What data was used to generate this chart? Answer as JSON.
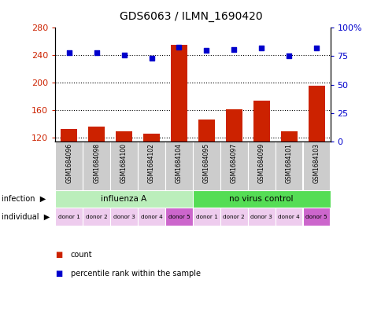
{
  "title": "GDS6063 / ILMN_1690420",
  "samples": [
    "GSM1684096",
    "GSM1684098",
    "GSM1684100",
    "GSM1684102",
    "GSM1684104",
    "GSM1684095",
    "GSM1684097",
    "GSM1684099",
    "GSM1684101",
    "GSM1684103"
  ],
  "bar_values": [
    133,
    136,
    130,
    126,
    255,
    147,
    161,
    174,
    130,
    196
  ],
  "percentile_values": [
    78,
    78,
    76,
    73,
    83,
    80,
    81,
    82,
    75,
    82
  ],
  "ylim_left": [
    115,
    280
  ],
  "ylim_right": [
    0,
    100
  ],
  "yticks_left": [
    120,
    160,
    200,
    240,
    280
  ],
  "yticks_right": [
    0,
    25,
    50,
    75,
    100
  ],
  "yticklabels_right": [
    "0",
    "25",
    "50",
    "75",
    "100%"
  ],
  "bar_color": "#CC2200",
  "dot_color": "#0000CC",
  "infection_groups": [
    {
      "label": "influenza A",
      "start": 0,
      "end": 5,
      "color": "#BBEEBB"
    },
    {
      "label": "no virus control",
      "start": 5,
      "end": 10,
      "color": "#55DD55"
    }
  ],
  "individual_labels": [
    "donor 1",
    "donor 2",
    "donor 3",
    "donor 4",
    "donor 5",
    "donor 1",
    "donor 2",
    "donor 3",
    "donor 4",
    "donor 5"
  ],
  "individual_colors": [
    "#EECCEE",
    "#EECCEE",
    "#EECCEE",
    "#EECCEE",
    "#CC66CC",
    "#EECCEE",
    "#EECCEE",
    "#EECCEE",
    "#EECCEE",
    "#CC66CC"
  ],
  "xlabel_color_left": "#CC2200",
  "xlabel_color_right": "#0000CC",
  "sample_bg_color": "#CCCCCC",
  "infection_label": "infection",
  "individual_label": "individual",
  "legend": [
    {
      "label": "count",
      "color": "#CC2200"
    },
    {
      "label": "percentile rank within the sample",
      "color": "#0000CC"
    }
  ]
}
